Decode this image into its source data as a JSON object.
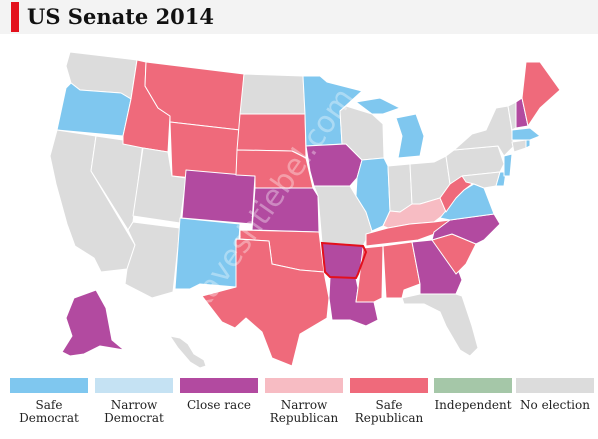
{
  "title": "US Senate 2014",
  "watermark": "Kaveshtiebel.com",
  "colors": {
    "safe_dem": "#7fc7ef",
    "narrow_dem": "#c5e2f3",
    "close": "#b24aa0",
    "narrow_rep": "#f7bcc3",
    "safe_rep": "#ef6a7b",
    "independent": "#a5c7a8",
    "none": "#dcdcdc",
    "highlight": "#e3101c"
  },
  "legend": [
    {
      "key": "safe_dem",
      "label": "Safe Democrat"
    },
    {
      "key": "narrow_dem",
      "label": "Narrow Democrat"
    },
    {
      "key": "close",
      "label": "Close race"
    },
    {
      "key": "narrow_rep",
      "label": "Narrow Republican"
    },
    {
      "key": "safe_rep",
      "label": "Safe Republican"
    },
    {
      "key": "independent",
      "label": "Independent"
    },
    {
      "key": "none",
      "label": "No election"
    }
  ],
  "states": {
    "WA": "none",
    "OR": "safe_dem",
    "CA": "none",
    "NV": "none",
    "ID": "safe_rep",
    "MT": "safe_rep",
    "WY": "safe_rep",
    "UT": "none",
    "AZ": "none",
    "NM": "safe_dem",
    "CO": "close",
    "ND": "none",
    "SD": "safe_rep",
    "NE": "safe_rep",
    "KS": "close",
    "OK": "safe_rep",
    "TX": "safe_rep",
    "MN": "safe_dem",
    "IA": "close",
    "MO": "none",
    "AR": "close",
    "LA": "close",
    "WI": "none",
    "IL": "safe_dem",
    "MI": "safe_dem",
    "IN": "none",
    "OH": "none",
    "KY": "narrow_rep",
    "TN": "safe_rep",
    "MS": "safe_rep",
    "AL": "safe_rep",
    "GA": "close",
    "FL": "none",
    "SC": "safe_rep",
    "NC": "close",
    "VA": "safe_dem",
    "WV": "safe_rep",
    "PA": "none",
    "NY": "none",
    "VT": "none",
    "NH": "close",
    "ME": "safe_rep",
    "MA": "safe_dem",
    "RI": "safe_dem",
    "CT": "none",
    "NJ": "safe_dem",
    "DE": "safe_dem",
    "MD": "none",
    "AK": "close",
    "HI": "none"
  },
  "highlighted_state": "AR"
}
